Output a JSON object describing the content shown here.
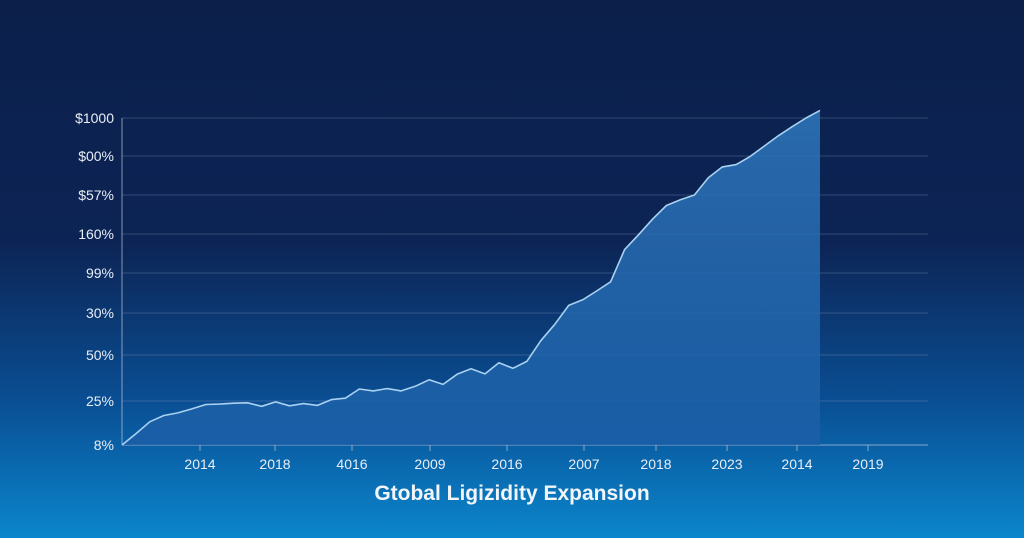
{
  "chart_data": {
    "type": "area",
    "title": "Gtobal Ligizidity Expansion",
    "xlabel": "",
    "ylabel": "",
    "y_tick_labels": [
      "8%",
      "25%",
      "50%",
      "30%",
      "99%",
      "160%",
      "$57%",
      "$00%",
      "$1000"
    ],
    "x_tick_labels": [
      "2014",
      "2018",
      "4016",
      "2009",
      "2016",
      "2007",
      "2018",
      "2023",
      "2014",
      "2019"
    ],
    "grid": true,
    "legend": "none",
    "series": [
      {
        "values": [
          0.0,
          0.26,
          0.53,
          0.67,
          0.73,
          0.82,
          0.92,
          0.93,
          0.95,
          0.96,
          0.88,
          0.98,
          0.89,
          0.94,
          0.9,
          1.03,
          1.06,
          1.26,
          1.22,
          1.27,
          1.22,
          1.32,
          1.46,
          1.36,
          1.58,
          1.7,
          1.59,
          1.83,
          1.71,
          1.86,
          2.34,
          2.73,
          3.19,
          3.33,
          3.55,
          3.78,
          4.6,
          4.98,
          5.38,
          5.73,
          5.88,
          6.0,
          6.44,
          6.72,
          6.78,
          6.99,
          7.26,
          7.53,
          7.77,
          8.0,
          8.2
        ]
      }
    ],
    "colors": {
      "line": "#a9d1f2",
      "fill_top": "#2f78bd",
      "fill_bottom": "#1c5ea6",
      "grid": "#7f93b8"
    }
  }
}
